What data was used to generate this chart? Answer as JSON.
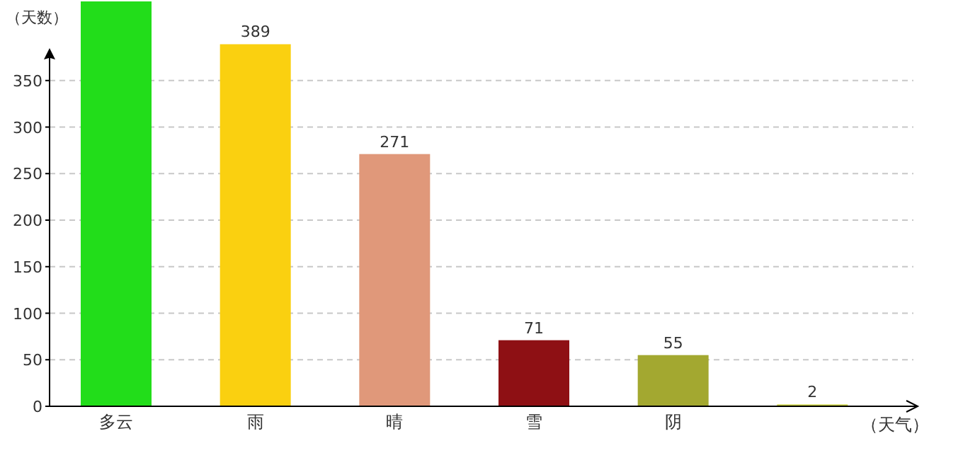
{
  "chart_data": {
    "type": "bar",
    "ylabel": "（天数）",
    "xlabel": "（天气）",
    "categories": [
      "多云",
      "雨",
      "晴",
      "雪",
      "阴",
      null
    ],
    "values": [
      435,
      389,
      271,
      71,
      55,
      2
    ],
    "value_labels": [
      null,
      "389",
      "271",
      "71",
      "55",
      "2"
    ],
    "colors": [
      "#22dd1a",
      "#fad010",
      "#e0987a",
      "#8e1014",
      "#a3a830",
      "#c8cf40"
    ],
    "ylim": [
      0,
      435
    ],
    "yticks": [
      0,
      50,
      100,
      150,
      200,
      250,
      300,
      350
    ],
    "grid": "y"
  }
}
